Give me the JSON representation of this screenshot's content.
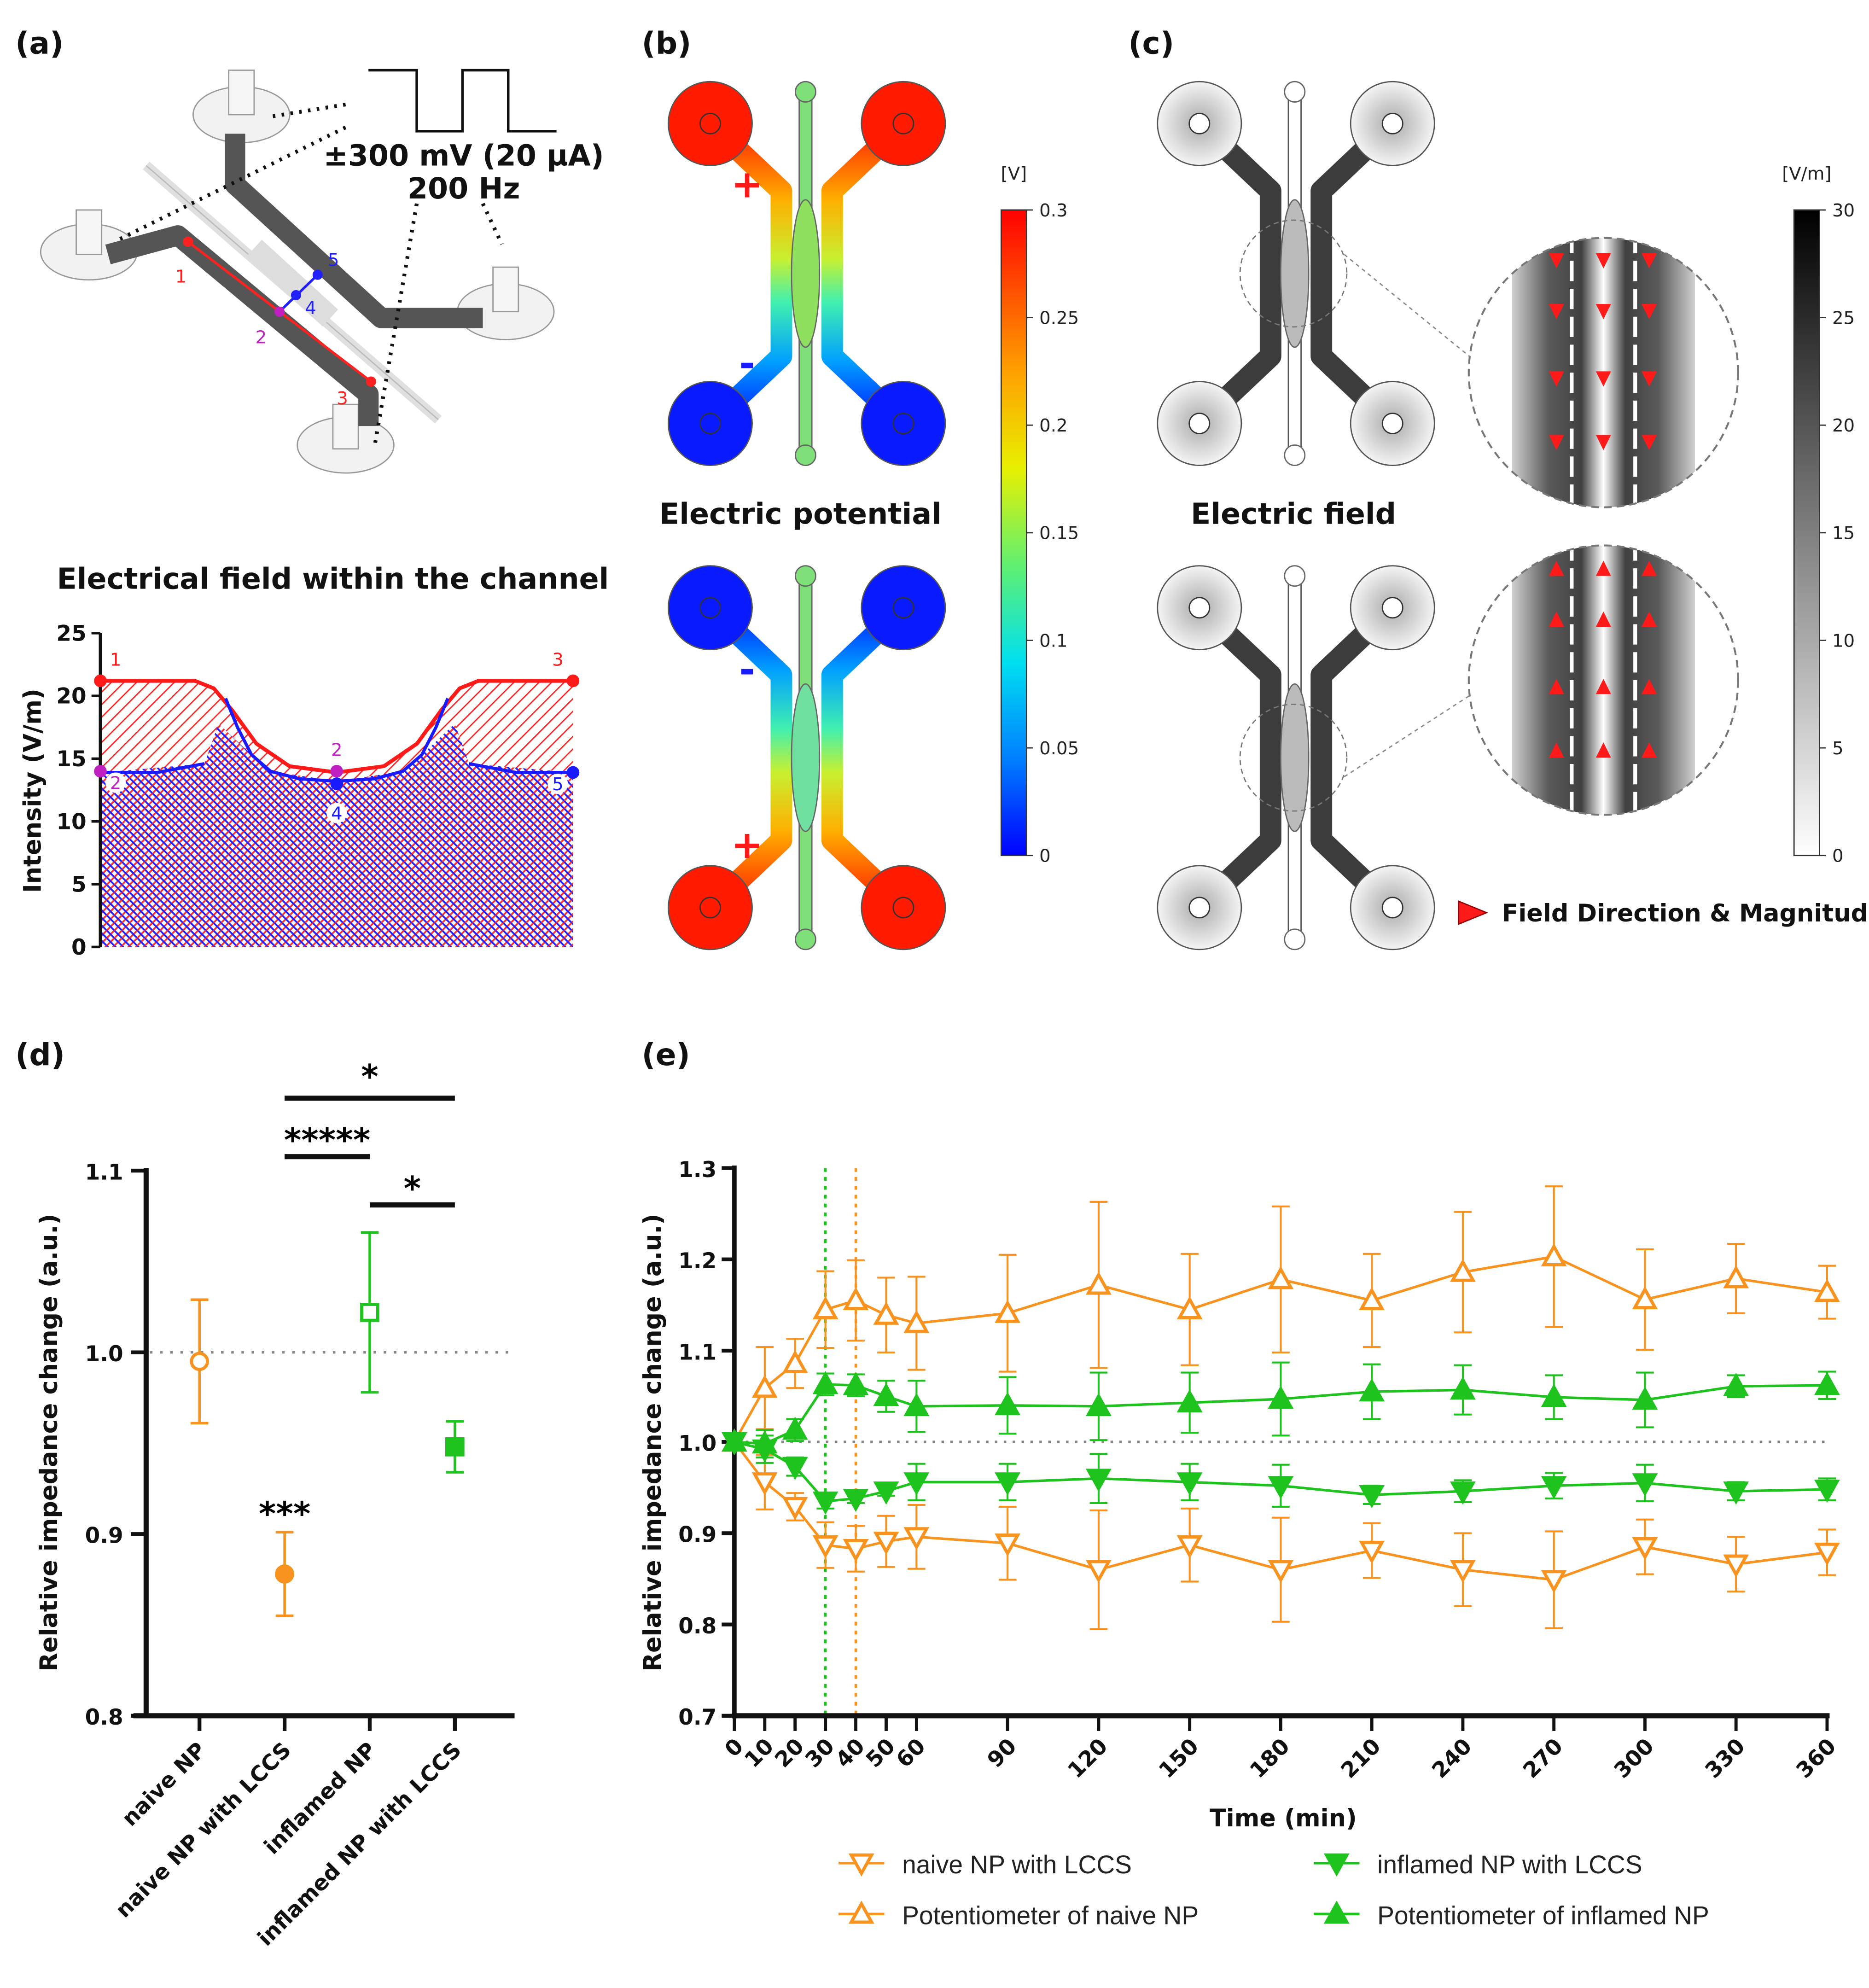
{
  "panels": {
    "a": {
      "label": "(a)",
      "wave_label": "±300 mV (20 µA)",
      "freq_label": "200 Hz",
      "device_points": [
        "1",
        "2",
        "3",
        "4",
        "5"
      ],
      "plot_title": "Electrical field within the channel"
    },
    "b": {
      "label": "(b)",
      "title": "Electric potential",
      "plus": "+",
      "minus": "-"
    },
    "c": {
      "label": "(c)",
      "title": "Electric field",
      "legend": "Field Direction & Magnitude"
    },
    "d": {
      "label": "(d)"
    },
    "e": {
      "label": "(e)"
    }
  },
  "colors": {
    "orange": "#f7931e",
    "green": "#1ec31e",
    "red": "#ff1a1a",
    "blue": "#1a1aff",
    "magenta": "#c020c0"
  },
  "chart_data": [
    {
      "panel": "a",
      "type": "area",
      "title": "Electrical field within the channel",
      "ylabel": "Intensity (V/m)",
      "ylim": [
        0,
        25
      ],
      "yticks": [
        0,
        5,
        10,
        15,
        20,
        25
      ],
      "x_unit": "relative position along channel (0-1)",
      "series": [
        {
          "name": "red path 1-2-3",
          "color": "#ff1a1a",
          "points": [
            [
              0,
              21.2
            ],
            [
              0.2,
              21.2
            ],
            [
              0.24,
              20.6
            ],
            [
              0.28,
              18.8
            ],
            [
              0.33,
              16.2
            ],
            [
              0.4,
              14.4
            ],
            [
              0.5,
              13.9
            ],
            [
              0.6,
              14.4
            ],
            [
              0.67,
              16.2
            ],
            [
              0.72,
              18.8
            ],
            [
              0.76,
              20.6
            ],
            [
              0.8,
              21.2
            ],
            [
              1,
              21.2
            ]
          ]
        },
        {
          "name": "blue path 2-4-5",
          "color": "#1a1aff",
          "segments": [
            [
              [
                0,
                13.9
              ],
              [
                0.12,
                13.9
              ],
              [
                0.22,
                14.6
              ]
            ],
            [
              [
                0.265,
                19.8
              ],
              [
                0.29,
                17.5
              ],
              [
                0.32,
                15.3
              ],
              [
                0.36,
                14.0
              ],
              [
                0.42,
                13.4
              ],
              [
                0.5,
                13.2
              ],
              [
                0.58,
                13.4
              ],
              [
                0.64,
                14.0
              ],
              [
                0.68,
                15.3
              ],
              [
                0.71,
                17.5
              ],
              [
                0.735,
                19.8
              ]
            ],
            [
              [
                0.78,
                14.6
              ],
              [
                0.88,
                13.9
              ],
              [
                1,
                13.9
              ]
            ]
          ]
        }
      ],
      "markers": [
        {
          "label": "1",
          "x": 0,
          "y": 21.2,
          "color": "#ff1a1a"
        },
        {
          "label": "3",
          "x": 1,
          "y": 21.2,
          "color": "#ff1a1a"
        },
        {
          "label": "2",
          "x": 0,
          "y": 14.0,
          "color": "#c020c0"
        },
        {
          "label": "2",
          "x": 0.5,
          "y": 14.0,
          "color": "#c020c0"
        },
        {
          "label": "4",
          "x": 0.5,
          "y": 13.0,
          "color": "#1a1aff"
        },
        {
          "label": "5",
          "x": 1,
          "y": 13.9,
          "color": "#1a1aff"
        }
      ]
    },
    {
      "panel": "b",
      "type": "colorbar",
      "unit": "[V]",
      "range": [
        0,
        0.3
      ],
      "ticks": [
        "0.3",
        "0.25",
        "0.2",
        "0.15",
        "0.1",
        "0.05",
        "0"
      ]
    },
    {
      "panel": "c",
      "type": "colorbar",
      "unit": "[V/m]",
      "range": [
        0,
        30
      ],
      "ticks": [
        "30",
        "25",
        "20",
        "15",
        "10",
        "5",
        "0"
      ]
    },
    {
      "panel": "d",
      "type": "scatter",
      "ylabel": "Relative impedance change (a.u.)",
      "ylim": [
        0.8,
        1.1
      ],
      "yticks": [
        "0.8",
        "0.9",
        "1.0",
        "1.1"
      ],
      "reference_line": 1.0,
      "categories": [
        "naive NP",
        "naive NP with LCCS",
        "inflamed NP",
        "inflamed NP with LCCS"
      ],
      "points": [
        {
          "mean": 0.995,
          "err": 0.034,
          "color": "#f7931e",
          "marker": "circle",
          "filled": false
        },
        {
          "mean": 0.878,
          "err": 0.023,
          "color": "#f7931e",
          "marker": "circle",
          "filled": true
        },
        {
          "mean": 1.022,
          "err": 0.044,
          "color": "#1ec31e",
          "marker": "square",
          "filled": false
        },
        {
          "mean": 0.948,
          "err": 0.014,
          "color": "#1ec31e",
          "marker": "square",
          "filled": true
        }
      ],
      "annotations": [
        {
          "text": "***",
          "category": 1
        },
        {
          "text": "*",
          "from": 1,
          "to": 3
        },
        {
          "text": "*****",
          "from": 1,
          "to": 2
        },
        {
          "text": "*",
          "from": 2,
          "to": 3
        }
      ]
    },
    {
      "panel": "e",
      "type": "line",
      "xlabel": "Time (min)",
      "ylabel": "Relative impedance change (a.u.)",
      "xlim": [
        0,
        360
      ],
      "ylim": [
        0.7,
        1.3
      ],
      "xticks": [
        0,
        10,
        20,
        30,
        40,
        50,
        60,
        90,
        120,
        150,
        180,
        210,
        240,
        270,
        300,
        330,
        360
      ],
      "yticks": [
        "0.7",
        "0.8",
        "0.9",
        "1.0",
        "1.1",
        "1.2",
        "1.3"
      ],
      "reference_line": 1.0,
      "vertical_lines": [
        {
          "x": 30,
          "color": "#1ec31e"
        },
        {
          "x": 40,
          "color": "#f7931e"
        }
      ],
      "series": [
        {
          "name": "naive NP with LCCS",
          "color": "#f7931e",
          "marker": "down",
          "filled": false,
          "mean": [
            1.0,
            0.956,
            0.929,
            0.887,
            0.883,
            0.891,
            0.896,
            0.889,
            0.86,
            0.887,
            0.86,
            0.881,
            0.86,
            0.849,
            0.885,
            0.866,
            0.879
          ],
          "err": [
            0,
            0.03,
            0.015,
            0.025,
            0.025,
            0.028,
            0.035,
            0.04,
            0.065,
            0.04,
            0.057,
            0.03,
            0.04,
            0.053,
            0.03,
            0.03,
            0.025
          ]
        },
        {
          "name": "Potentiometer of naive NP",
          "color": "#f7931e",
          "marker": "up",
          "filled": false,
          "mean": [
            1.0,
            1.059,
            1.086,
            1.145,
            1.155,
            1.139,
            1.13,
            1.141,
            1.172,
            1.145,
            1.178,
            1.155,
            1.186,
            1.203,
            1.156,
            1.179,
            1.164
          ],
          "err": [
            0,
            0.045,
            0.027,
            0.042,
            0.044,
            0.041,
            0.051,
            0.064,
            0.091,
            0.061,
            0.08,
            0.051,
            0.066,
            0.077,
            0.055,
            0.038,
            0.029
          ]
        },
        {
          "name": "inflamed NP with LCCS",
          "color": "#1ec31e",
          "marker": "down",
          "filled": true,
          "mean": [
            1.0,
            0.992,
            0.973,
            0.935,
            0.938,
            0.946,
            0.956,
            0.956,
            0.96,
            0.956,
            0.952,
            0.942,
            0.946,
            0.952,
            0.955,
            0.946,
            0.948
          ],
          "err": [
            0,
            0.015,
            0.01,
            0.008,
            0.005,
            0.005,
            0.02,
            0.02,
            0.027,
            0.02,
            0.023,
            0.01,
            0.012,
            0.014,
            0.02,
            0.01,
            0.012
          ]
        },
        {
          "name": "Potentiometer of inflamed NP",
          "color": "#1ec31e",
          "marker": "up",
          "filled": true,
          "mean": [
            1.0,
            0.998,
            1.013,
            1.063,
            1.062,
            1.05,
            1.039,
            1.04,
            1.039,
            1.043,
            1.047,
            1.055,
            1.057,
            1.049,
            1.046,
            1.061,
            1.062
          ],
          "err": [
            0,
            0.015,
            0.012,
            0.012,
            0.012,
            0.017,
            0.028,
            0.031,
            0.037,
            0.033,
            0.04,
            0.03,
            0.027,
            0.024,
            0.03,
            0.012,
            0.015
          ]
        }
      ],
      "legend_position": "bottom"
    }
  ]
}
